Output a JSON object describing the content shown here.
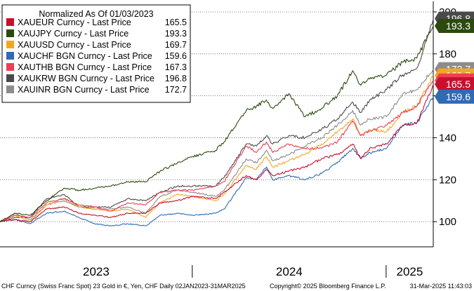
{
  "chart_data": {
    "type": "line",
    "legend_title": "Normalized As Of 01/03/2023",
    "legend_position": "top-left",
    "y_axis_position": "right",
    "ylim": [
      88,
      203
    ],
    "y_ticks": [
      100,
      120,
      140,
      160,
      180,
      200
    ],
    "x_start": "2023-01-03",
    "x_end": "2025-03-31",
    "x_year_labels": [
      "2023",
      "2024",
      "2025"
    ],
    "grid": "horizontal-dotted",
    "series": [
      {
        "name": "XAUEUR Curncy - Last Price",
        "last": "165.5",
        "color": "#c8102e",
        "points": [
          [
            "2023-01-03",
            100
          ],
          [
            "2023-02-01",
            101
          ],
          [
            "2023-03-01",
            100
          ],
          [
            "2023-04-01",
            106
          ],
          [
            "2023-05-04",
            107
          ],
          [
            "2023-06-01",
            104
          ],
          [
            "2023-07-01",
            103
          ],
          [
            "2023-08-01",
            102
          ],
          [
            "2023-09-01",
            104
          ],
          [
            "2023-10-05",
            104
          ],
          [
            "2023-11-01",
            109
          ],
          [
            "2023-12-04",
            110
          ],
          [
            "2024-01-02",
            112
          ],
          [
            "2024-02-14",
            111
          ],
          [
            "2024-03-01",
            114
          ],
          [
            "2024-04-12",
            122
          ],
          [
            "2024-05-01",
            120
          ],
          [
            "2024-05-20",
            125
          ],
          [
            "2024-06-01",
            122
          ],
          [
            "2024-07-01",
            124
          ],
          [
            "2024-08-01",
            126
          ],
          [
            "2024-09-01",
            130
          ],
          [
            "2024-10-01",
            132
          ],
          [
            "2024-10-30",
            137
          ],
          [
            "2024-11-14",
            130
          ],
          [
            "2024-12-01",
            135
          ],
          [
            "2025-01-02",
            137
          ],
          [
            "2025-02-01",
            146
          ],
          [
            "2025-02-28",
            147
          ],
          [
            "2025-03-31",
            165.5
          ]
        ]
      },
      {
        "name": "XAUJPY Curncy - Last Price",
        "last": "193.3",
        "color": "#2d4a0e",
        "points": [
          [
            "2023-01-03",
            100
          ],
          [
            "2023-02-01",
            104
          ],
          [
            "2023-03-01",
            103
          ],
          [
            "2023-04-01",
            110
          ],
          [
            "2023-05-04",
            116
          ],
          [
            "2023-06-01",
            115
          ],
          [
            "2023-07-01",
            116
          ],
          [
            "2023-08-01",
            117
          ],
          [
            "2023-09-01",
            119
          ],
          [
            "2023-10-05",
            119
          ],
          [
            "2023-11-01",
            124
          ],
          [
            "2023-12-04",
            128
          ],
          [
            "2024-01-02",
            131
          ],
          [
            "2024-02-14",
            134
          ],
          [
            "2024-03-01",
            138
          ],
          [
            "2024-04-12",
            153
          ],
          [
            "2024-05-01",
            155
          ],
          [
            "2024-05-20",
            158
          ],
          [
            "2024-06-01",
            154
          ],
          [
            "2024-07-01",
            161
          ],
          [
            "2024-08-01",
            150
          ],
          [
            "2024-09-01",
            154
          ],
          [
            "2024-10-01",
            160
          ],
          [
            "2024-10-30",
            172
          ],
          [
            "2024-11-14",
            165
          ],
          [
            "2024-12-01",
            168
          ],
          [
            "2025-01-02",
            170
          ],
          [
            "2025-02-01",
            176
          ],
          [
            "2025-02-28",
            178
          ],
          [
            "2025-03-31",
            193.3
          ]
        ]
      },
      {
        "name": "XAUUSD Curncy - Last Price",
        "last": "169.7",
        "color": "#f5a623",
        "points": [
          [
            "2023-01-03",
            100
          ],
          [
            "2023-02-01",
            103
          ],
          [
            "2023-03-01",
            100
          ],
          [
            "2023-04-01",
            108
          ],
          [
            "2023-05-04",
            111
          ],
          [
            "2023-06-01",
            107
          ],
          [
            "2023-07-01",
            106
          ],
          [
            "2023-08-01",
            105
          ],
          [
            "2023-09-01",
            106
          ],
          [
            "2023-10-05",
            102
          ],
          [
            "2023-11-01",
            109
          ],
          [
            "2023-12-04",
            113
          ],
          [
            "2024-01-02",
            112
          ],
          [
            "2024-02-14",
            110
          ],
          [
            "2024-03-01",
            113
          ],
          [
            "2024-04-12",
            127
          ],
          [
            "2024-05-01",
            125
          ],
          [
            "2024-05-20",
            131
          ],
          [
            "2024-06-01",
            126
          ],
          [
            "2024-07-01",
            129
          ],
          [
            "2024-08-01",
            132
          ],
          [
            "2024-09-01",
            137
          ],
          [
            "2024-10-01",
            143
          ],
          [
            "2024-10-30",
            149
          ],
          [
            "2024-11-14",
            141
          ],
          [
            "2024-12-01",
            144
          ],
          [
            "2025-01-02",
            143
          ],
          [
            "2025-02-01",
            152
          ],
          [
            "2025-02-28",
            155
          ],
          [
            "2025-03-31",
            169.7
          ]
        ]
      },
      {
        "name": "XAUCHF BGN Curncy - Last Price",
        "last": "159.6",
        "color": "#2f6bb3",
        "points": [
          [
            "2023-01-03",
            100
          ],
          [
            "2023-02-01",
            101
          ],
          [
            "2023-03-01",
            99
          ],
          [
            "2023-04-01",
            104
          ],
          [
            "2023-05-04",
            105
          ],
          [
            "2023-06-01",
            102
          ],
          [
            "2023-07-01",
            99
          ],
          [
            "2023-08-01",
            98
          ],
          [
            "2023-09-01",
            99
          ],
          [
            "2023-10-05",
            98
          ],
          [
            "2023-11-01",
            103
          ],
          [
            "2023-12-04",
            104
          ],
          [
            "2024-01-02",
            103
          ],
          [
            "2024-02-14",
            104
          ],
          [
            "2024-03-01",
            106
          ],
          [
            "2024-04-12",
            121
          ],
          [
            "2024-05-01",
            120
          ],
          [
            "2024-05-20",
            126
          ],
          [
            "2024-06-01",
            120
          ],
          [
            "2024-07-01",
            122
          ],
          [
            "2024-08-01",
            120
          ],
          [
            "2024-09-01",
            123
          ],
          [
            "2024-10-01",
            128
          ],
          [
            "2024-10-30",
            135
          ],
          [
            "2024-11-14",
            130
          ],
          [
            "2024-12-01",
            133
          ],
          [
            "2025-01-02",
            135
          ],
          [
            "2025-02-01",
            146
          ],
          [
            "2025-02-28",
            147
          ],
          [
            "2025-03-31",
            159.6
          ]
        ]
      },
      {
        "name": "XAUTHB BGN Curncy - Last Price",
        "last": "167.3",
        "color": "#f03e55",
        "points": [
          [
            "2023-01-03",
            100
          ],
          [
            "2023-02-01",
            103
          ],
          [
            "2023-03-01",
            102
          ],
          [
            "2023-04-01",
            109
          ],
          [
            "2023-05-04",
            111
          ],
          [
            "2023-06-01",
            108
          ],
          [
            "2023-07-01",
            107
          ],
          [
            "2023-08-01",
            105
          ],
          [
            "2023-09-01",
            109
          ],
          [
            "2023-10-05",
            108
          ],
          [
            "2023-11-01",
            114
          ],
          [
            "2023-12-04",
            115
          ],
          [
            "2024-01-02",
            115
          ],
          [
            "2024-02-14",
            117
          ],
          [
            "2024-03-01",
            119
          ],
          [
            "2024-04-12",
            136
          ],
          [
            "2024-05-01",
            133
          ],
          [
            "2024-05-20",
            138
          ],
          [
            "2024-06-01",
            133
          ],
          [
            "2024-07-01",
            137
          ],
          [
            "2024-08-01",
            135
          ],
          [
            "2024-09-01",
            135
          ],
          [
            "2024-10-01",
            138
          ],
          [
            "2024-10-30",
            148
          ],
          [
            "2024-11-14",
            141
          ],
          [
            "2024-12-01",
            143
          ],
          [
            "2025-01-02",
            146
          ],
          [
            "2025-02-01",
            152
          ],
          [
            "2025-02-28",
            155
          ],
          [
            "2025-03-31",
            167.3
          ]
        ]
      },
      {
        "name": "XAUKRW BGN Curncy - Last Price",
        "last": "196.8",
        "color": "#4a4a4a",
        "points": [
          [
            "2023-01-03",
            100
          ],
          [
            "2023-02-01",
            102
          ],
          [
            "2023-03-01",
            102
          ],
          [
            "2023-04-01",
            111
          ],
          [
            "2023-05-04",
            113
          ],
          [
            "2023-06-01",
            107
          ],
          [
            "2023-07-01",
            107
          ],
          [
            "2023-08-01",
            107
          ],
          [
            "2023-09-01",
            111
          ],
          [
            "2023-10-05",
            110
          ],
          [
            "2023-11-01",
            114
          ],
          [
            "2023-12-04",
            117
          ],
          [
            "2024-01-02",
            117
          ],
          [
            "2024-02-14",
            117
          ],
          [
            "2024-03-01",
            121
          ],
          [
            "2024-04-12",
            137
          ],
          [
            "2024-05-01",
            136
          ],
          [
            "2024-05-20",
            141
          ],
          [
            "2024-06-01",
            137
          ],
          [
            "2024-07-01",
            141
          ],
          [
            "2024-08-01",
            140
          ],
          [
            "2024-09-01",
            144
          ],
          [
            "2024-10-01",
            149
          ],
          [
            "2024-10-30",
            157
          ],
          [
            "2024-11-14",
            152
          ],
          [
            "2024-12-01",
            158
          ],
          [
            "2025-01-02",
            163
          ],
          [
            "2025-02-01",
            170
          ],
          [
            "2025-02-28",
            173
          ],
          [
            "2025-03-31",
            196.8
          ]
        ]
      },
      {
        "name": "XAUINR BGN Curncy - Last Price",
        "last": "172.7",
        "color": "#8c8c8c",
        "points": [
          [
            "2023-01-03",
            100
          ],
          [
            "2023-02-01",
            104
          ],
          [
            "2023-03-01",
            101
          ],
          [
            "2023-04-01",
            108
          ],
          [
            "2023-05-04",
            110
          ],
          [
            "2023-06-01",
            107
          ],
          [
            "2023-07-01",
            106
          ],
          [
            "2023-08-01",
            106
          ],
          [
            "2023-09-01",
            107
          ],
          [
            "2023-10-05",
            104
          ],
          [
            "2023-11-01",
            112
          ],
          [
            "2023-12-04",
            115
          ],
          [
            "2024-01-02",
            114
          ],
          [
            "2024-02-14",
            112
          ],
          [
            "2024-03-01",
            115
          ],
          [
            "2024-04-12",
            130
          ],
          [
            "2024-05-01",
            128
          ],
          [
            "2024-05-20",
            134
          ],
          [
            "2024-06-01",
            129
          ],
          [
            "2024-07-01",
            132
          ],
          [
            "2024-08-01",
            136
          ],
          [
            "2024-09-01",
            140
          ],
          [
            "2024-10-01",
            146
          ],
          [
            "2024-10-30",
            153
          ],
          [
            "2024-11-14",
            146
          ],
          [
            "2024-12-01",
            149
          ],
          [
            "2025-01-02",
            150
          ],
          [
            "2025-02-01",
            161
          ],
          [
            "2025-02-28",
            163
          ],
          [
            "2025-03-31",
            172.7
          ]
        ]
      }
    ]
  },
  "footer": {
    "left": "CHF Curncy (Swiss Franc Spot) 23 Gold in €, Yen, CHF  Daily 02JAN2023-31MAR2025",
    "middle": "Copyright© 2025 Bloomberg Finance L.P.",
    "right": "31-Mar-2025 11:43:03"
  }
}
